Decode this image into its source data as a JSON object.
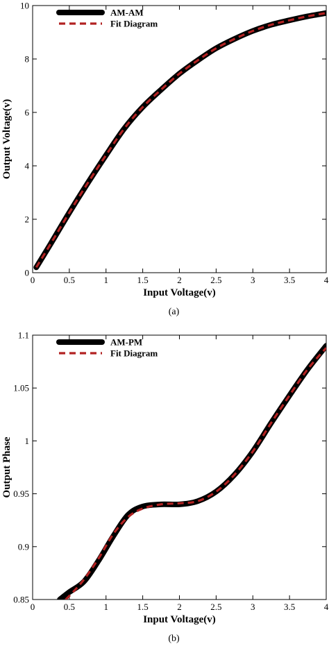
{
  "chart_data": [
    {
      "type": "line",
      "xlabel": "Input Voltage(v)",
      "ylabel": "Output Voltage(v)",
      "xlim": [
        0,
        4
      ],
      "ylim": [
        0,
        10
      ],
      "xticks": [
        "0",
        "0.5",
        "1",
        "1.5",
        "2",
        "2.5",
        "3",
        "3.5",
        "4"
      ],
      "yticks": [
        "0",
        "2",
        "4",
        "6",
        "8",
        "10"
      ],
      "grid": false,
      "legend_position": "top-left",
      "caption": "(a)",
      "series": [
        {
          "name": "AM-AM",
          "color": "#000000",
          "style": "solid",
          "x": [
            0.05,
            0.25,
            0.5,
            0.75,
            1.0,
            1.25,
            1.5,
            1.75,
            2.0,
            2.25,
            2.5,
            2.75,
            3.0,
            3.25,
            3.5,
            3.75,
            4.0
          ],
          "y": [
            0.2,
            1.1,
            2.25,
            3.35,
            4.4,
            5.4,
            6.2,
            6.85,
            7.45,
            7.95,
            8.4,
            8.75,
            9.05,
            9.28,
            9.45,
            9.6,
            9.72
          ]
        },
        {
          "name": "Fit Diagram",
          "color": "#b22222",
          "style": "dashed",
          "x": [
            0.05,
            0.25,
            0.5,
            0.75,
            1.0,
            1.25,
            1.5,
            1.75,
            2.0,
            2.25,
            2.5,
            2.75,
            3.0,
            3.25,
            3.5,
            3.75,
            4.0
          ],
          "y": [
            0.2,
            1.1,
            2.25,
            3.35,
            4.4,
            5.4,
            6.2,
            6.85,
            7.45,
            7.95,
            8.4,
            8.75,
            9.05,
            9.28,
            9.45,
            9.6,
            9.72
          ]
        }
      ]
    },
    {
      "type": "line",
      "xlabel": "Input Voltage(v)",
      "ylabel": "Output Phase",
      "xlim": [
        0,
        4
      ],
      "ylim": [
        0.85,
        1.1
      ],
      "xticks": [
        "0",
        "0.5",
        "1",
        "1.5",
        "2",
        "2.5",
        "3",
        "3.5",
        "4"
      ],
      "yticks": [
        "0.85",
        "0.9",
        "0.95",
        "1",
        "1.05",
        "1.1"
      ],
      "grid": false,
      "legend_position": "top-left",
      "caption": "(b)",
      "series": [
        {
          "name": "AM-PM",
          "color": "#000000",
          "style": "solid",
          "x": [
            0.37,
            0.5,
            0.7,
            0.9,
            1.1,
            1.3,
            1.5,
            1.75,
            2.0,
            2.25,
            2.5,
            2.75,
            3.0,
            3.25,
            3.5,
            3.75,
            4.0
          ],
          "y": [
            0.85,
            0.857,
            0.867,
            0.887,
            0.91,
            0.93,
            0.938,
            0.94,
            0.94,
            0.943,
            0.952,
            0.968,
            0.99,
            1.017,
            1.043,
            1.068,
            1.09
          ]
        },
        {
          "name": "Fit Diagram",
          "color": "#b22222",
          "style": "dashed",
          "x": [
            0.45,
            0.55,
            0.7,
            0.9,
            1.1,
            1.3,
            1.5,
            1.75,
            2.0,
            2.25,
            2.5,
            2.75,
            3.0,
            3.25,
            3.5,
            3.75,
            4.0
          ],
          "y": [
            0.85,
            0.857,
            0.869,
            0.889,
            0.912,
            0.928,
            0.936,
            0.94,
            0.941,
            0.943,
            0.952,
            0.968,
            0.99,
            1.017,
            1.043,
            1.068,
            1.088
          ]
        }
      ]
    }
  ]
}
